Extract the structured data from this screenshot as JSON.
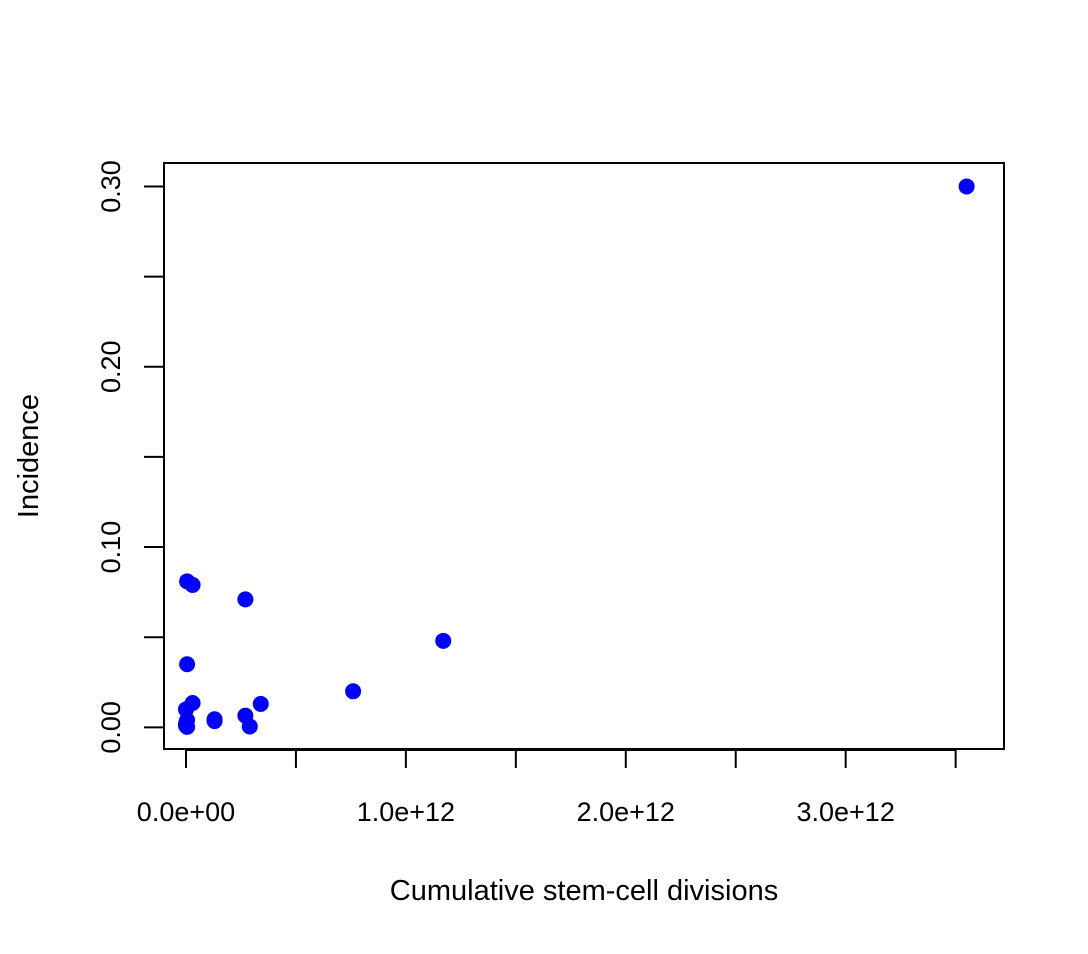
{
  "chart_data": {
    "type": "scatter",
    "title": "",
    "xlabel": "Cumulative stem-cell divisions",
    "ylabel": "Incidence",
    "xlim": [
      -100000000000.0,
      3720000000000.0
    ],
    "ylim": [
      -0.012,
      0.313
    ],
    "grid": false,
    "legend": "none",
    "point_color": "#0000FF",
    "x_ticks": [
      0,
      500000000000.0,
      1000000000000.0,
      1500000000000.0,
      2000000000000.0,
      2500000000000.0,
      3000000000000.0,
      3500000000000.0
    ],
    "x_tick_labels": [
      {
        "value": 0,
        "label": "0.0e+00"
      },
      {
        "value": 1000000000000.0,
        "label": "1.0e+12"
      },
      {
        "value": 2000000000000.0,
        "label": "2.0e+12"
      },
      {
        "value": 3000000000000.0,
        "label": "3.0e+12"
      }
    ],
    "y_ticks": [
      0,
      0.05,
      0.1,
      0.15,
      0.2,
      0.25,
      0.3
    ],
    "y_tick_labels": [
      {
        "value": 0.0,
        "label": "0.00"
      },
      {
        "value": 0.1,
        "label": "0.10"
      },
      {
        "value": 0.2,
        "label": "0.20"
      },
      {
        "value": 0.3,
        "label": "0.30"
      }
    ],
    "points": [
      {
        "x": 3550000000000.0,
        "y": 0.3
      },
      {
        "x": 1170000000000.0,
        "y": 0.048
      },
      {
        "x": 760000000000.0,
        "y": 0.02
      },
      {
        "x": 340000000000.0,
        "y": 0.013
      },
      {
        "x": 270000000000.0,
        "y": 0.071
      },
      {
        "x": 270000000000.0,
        "y": 0.0065
      },
      {
        "x": 290000000000.0,
        "y": 0.0005
      },
      {
        "x": 130000000000.0,
        "y": 0.0045
      },
      {
        "x": 130000000000.0,
        "y": 0.0035
      },
      {
        "x": 30000000000.0,
        "y": 0.079
      },
      {
        "x": 5000000000.0,
        "y": 0.081
      },
      {
        "x": 5000000000.0,
        "y": 0.035
      },
      {
        "x": 30000000000.0,
        "y": 0.0135
      },
      {
        "x": 0.0,
        "y": 0.01
      },
      {
        "x": 5000000000.0,
        "y": 0.004
      },
      {
        "x": 0.0,
        "y": 0.002
      },
      {
        "x": 0.0,
        "y": 0.001
      },
      {
        "x": 5000000000.0,
        "y": 0.0003
      }
    ]
  }
}
